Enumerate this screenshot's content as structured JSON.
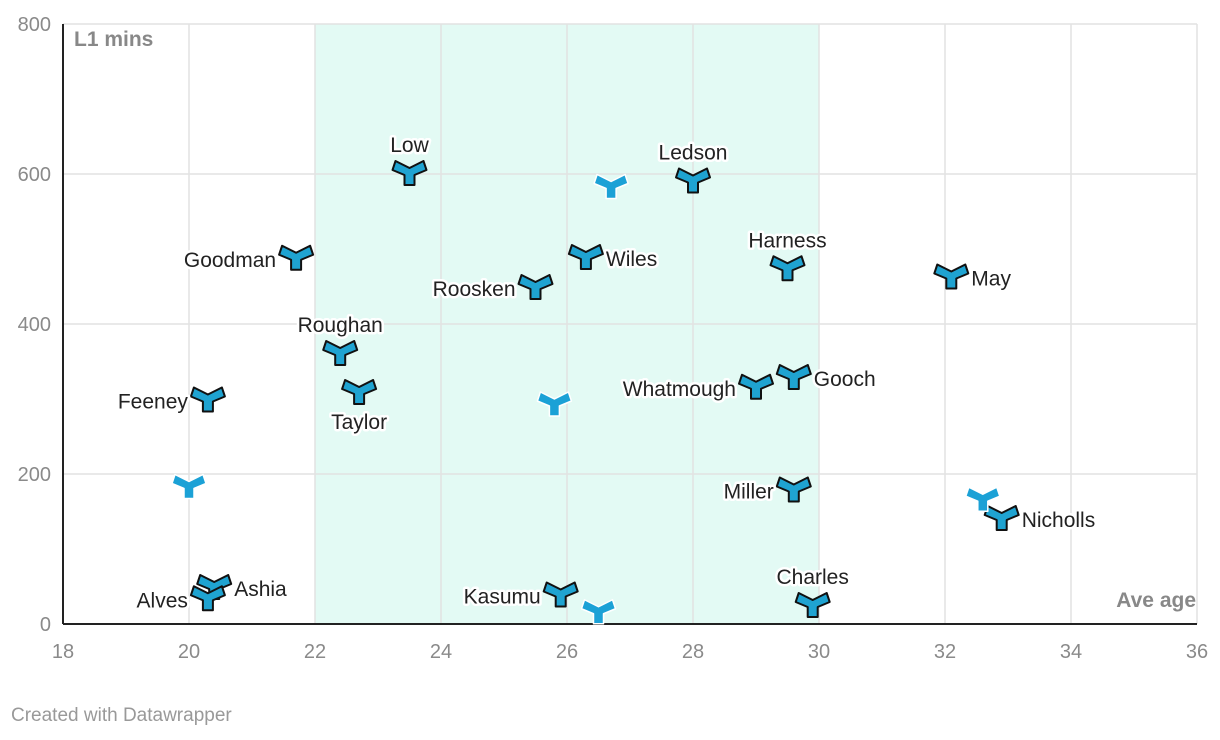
{
  "chart_data": {
    "type": "scatter",
    "title": "",
    "xlabel": "Ave age",
    "ylabel": "L1 mins",
    "xlim": [
      18,
      36
    ],
    "ylim": [
      0,
      800
    ],
    "xticks": [
      18,
      20,
      22,
      24,
      26,
      28,
      30,
      32,
      34,
      36
    ],
    "yticks": [
      0,
      200,
      400,
      600,
      800
    ],
    "grid": true,
    "highlight_band": {
      "x_from": 22,
      "x_to": 30,
      "color": "#e3faf4"
    },
    "marker_color": "#1fa3d1",
    "marker_color_unlabeled": "#1ba1d6",
    "points": [
      {
        "name": "Low",
        "x": 23.5,
        "y": 600,
        "label_pos": "above"
      },
      {
        "name": "Ledson",
        "x": 28.0,
        "y": 590,
        "label_pos": "above"
      },
      {
        "name": "Goodman",
        "x": 21.7,
        "y": 487,
        "label_pos": "left"
      },
      {
        "name": "Wiles",
        "x": 26.3,
        "y": 488,
        "label_pos": "right"
      },
      {
        "name": "Harness",
        "x": 29.5,
        "y": 473,
        "label_pos": "above"
      },
      {
        "name": "May",
        "x": 32.1,
        "y": 462,
        "label_pos": "right"
      },
      {
        "name": "Roosken",
        "x": 25.5,
        "y": 448,
        "label_pos": "left"
      },
      {
        "name": "Roughan",
        "x": 22.4,
        "y": 360,
        "label_pos": "above"
      },
      {
        "name": "Taylor",
        "x": 22.7,
        "y": 308,
        "label_pos": "below"
      },
      {
        "name": "Feeney",
        "x": 20.3,
        "y": 298,
        "label_pos": "left"
      },
      {
        "name": "Whatmough",
        "x": 29.0,
        "y": 315,
        "label_pos": "left"
      },
      {
        "name": "Gooch",
        "x": 29.6,
        "y": 328,
        "label_pos": "right"
      },
      {
        "name": "Miller",
        "x": 29.6,
        "y": 178,
        "label_pos": "left"
      },
      {
        "name": "Nicholls",
        "x": 32.9,
        "y": 140,
        "label_pos": "right"
      },
      {
        "name": "Ashia",
        "x": 20.4,
        "y": 48,
        "label_pos": "right"
      },
      {
        "name": "Alves",
        "x": 20.3,
        "y": 33,
        "label_pos": "left"
      },
      {
        "name": "Kasumu",
        "x": 25.9,
        "y": 38,
        "label_pos": "left"
      },
      {
        "name": "Charles",
        "x": 29.9,
        "y": 24,
        "label_pos": "above"
      },
      {
        "name": "",
        "x": 26.7,
        "y": 582,
        "label_pos": "none"
      },
      {
        "name": "",
        "x": 25.8,
        "y": 292,
        "label_pos": "none"
      },
      {
        "name": "",
        "x": 20.0,
        "y": 182,
        "label_pos": "none"
      },
      {
        "name": "",
        "x": 32.6,
        "y": 165,
        "label_pos": "none"
      },
      {
        "name": "",
        "x": 26.5,
        "y": 15,
        "label_pos": "none"
      }
    ]
  },
  "footer": {
    "credit": "Created with Datawrapper"
  }
}
